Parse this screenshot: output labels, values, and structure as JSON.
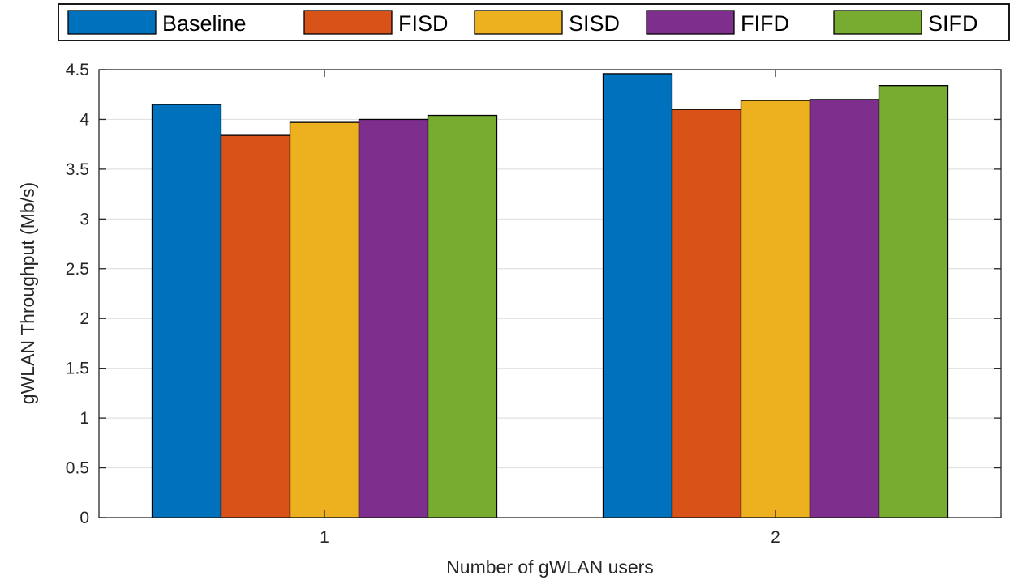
{
  "chart_data": {
    "type": "bar",
    "title": "",
    "xlabel": "Number of gWLAN users",
    "ylabel": "gWLAN Throughput (Mb/s)",
    "categories": [
      "1",
      "2"
    ],
    "series": [
      {
        "name": "Baseline",
        "color": "#0072BD",
        "values": [
          4.15,
          4.46
        ]
      },
      {
        "name": "FISD",
        "color": "#D95319",
        "values": [
          3.84,
          4.1
        ]
      },
      {
        "name": "SISD",
        "color": "#EDB120",
        "values": [
          3.97,
          4.19
        ]
      },
      {
        "name": "FIFD",
        "color": "#7E2F8E",
        "values": [
          4.0,
          4.2
        ]
      },
      {
        "name": "SIFD",
        "color": "#77AC30",
        "values": [
          4.04,
          4.34
        ]
      }
    ],
    "ylim": [
      0,
      4.5
    ],
    "yticks": [
      "0",
      "0.5",
      "1",
      "1.5",
      "2",
      "2.5",
      "3",
      "3.5",
      "4",
      "4.5"
    ],
    "grid": true,
    "legend_position": "top"
  }
}
